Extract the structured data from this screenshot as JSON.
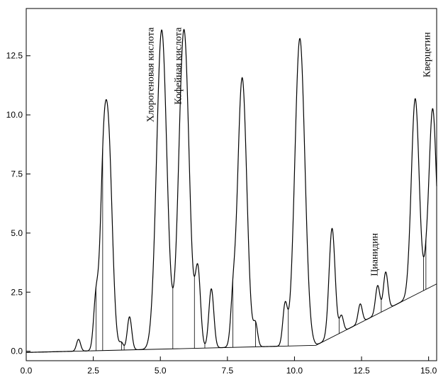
{
  "chart_data": {
    "type": "line",
    "title": "",
    "xlabel": "",
    "ylabel": "",
    "xlim": [
      0.0,
      15.3
    ],
    "ylim": [
      -0.4,
      14.5
    ],
    "grid": false,
    "x_ticks": [
      0.0,
      2.5,
      5.0,
      7.5,
      10.0,
      12.5,
      15.0
    ],
    "x_tick_labels": [
      "0.0",
      "2.5",
      "5.0",
      "7.5",
      "10.0",
      "12.5",
      "15.0"
    ],
    "y_ticks": [
      0.0,
      2.5,
      5.0,
      7.5,
      10.0,
      12.5
    ],
    "y_tick_labels": [
      "0.0",
      "2.5",
      "5.0",
      "7.5",
      "10.0",
      "12.5"
    ],
    "series": [
      {
        "values_type": "peaks",
        "peaks": [
          {
            "x": 1.95,
            "height": 0.5
          },
          {
            "x": 2.6,
            "height": 2.2
          },
          {
            "x": 2.85,
            "height": 4.6
          },
          {
            "x": 3.05,
            "height": 9.2
          },
          {
            "x": 3.55,
            "height": 0.3
          },
          {
            "x": 3.85,
            "height": 1.4
          },
          {
            "x": 5.05,
            "height": 13.5
          },
          {
            "x": 5.88,
            "height": 13.5
          },
          {
            "x": 6.4,
            "height": 3.2
          },
          {
            "x": 6.9,
            "height": 2.5
          },
          {
            "x": 7.7,
            "height": 1.4
          },
          {
            "x": 8.05,
            "height": 11.4
          },
          {
            "x": 8.55,
            "height": 0.9
          },
          {
            "x": 9.65,
            "height": 1.7
          },
          {
            "x": 10.2,
            "height": 13.0
          },
          {
            "x": 11.4,
            "height": 4.6
          },
          {
            "x": 11.75,
            "height": 0.7
          },
          {
            "x": 12.45,
            "height": 0.8
          },
          {
            "x": 13.1,
            "height": 1.2
          },
          {
            "x": 13.4,
            "height": 1.6
          },
          {
            "x": 14.5,
            "height": 8.3
          },
          {
            "x": 14.9,
            "height": 0.5
          },
          {
            "x": 15.15,
            "height": 7.5
          }
        ],
        "baseline": [
          [
            0.0,
            -0.05
          ],
          [
            10.8,
            0.25
          ],
          [
            15.3,
            2.85
          ]
        ]
      }
    ],
    "annotations": [
      {
        "text": "Хлорогеновая кислота",
        "x": 4.75,
        "y": 13.7
      },
      {
        "text": "Кофейная кислота",
        "x": 5.78,
        "y": 13.7
      },
      {
        "text": "Цианидин",
        "x": 13.1,
        "y": 5.0
      },
      {
        "text": "Кверцетин",
        "x": 15.05,
        "y": 13.5
      }
    ]
  }
}
